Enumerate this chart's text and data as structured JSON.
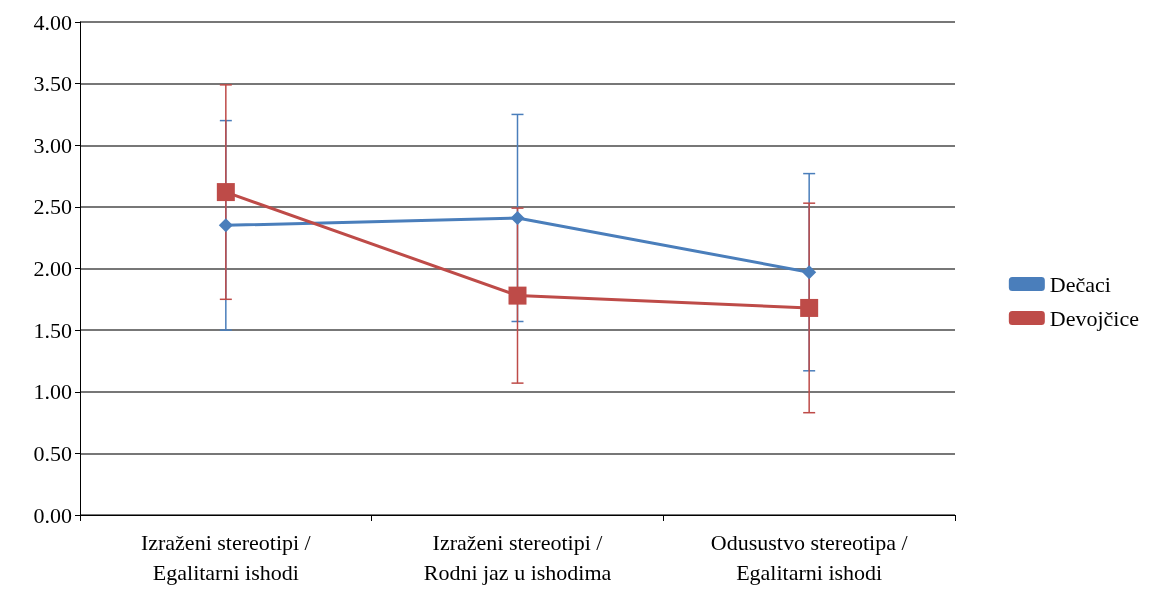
{
  "chart_data": {
    "type": "line",
    "categories": [
      "Izraženi stereotipi /\nEgalitarni ishodi",
      "Izraženi stereotipi /\nRodni jaz u ishodima",
      "Odusustvo stereotipa /\nEgalitarni ishodi"
    ],
    "series": [
      {
        "name": "Dečaci",
        "color": "#4a7ebb",
        "marker": "diamond",
        "values": [
          2.35,
          2.41,
          1.97
        ],
        "errors": [
          [
            1.5,
            3.2
          ],
          [
            1.57,
            3.25
          ],
          [
            1.17,
            2.77
          ]
        ]
      },
      {
        "name": "Devojčice",
        "color": "#be4b48",
        "marker": "square",
        "values": [
          2.62,
          1.78,
          1.68
        ],
        "errors": [
          [
            1.75,
            3.49
          ],
          [
            1.07,
            2.49
          ],
          [
            0.83,
            2.53
          ]
        ]
      }
    ],
    "ylim": [
      0,
      4
    ],
    "yticks": [
      {
        "value": 0,
        "label": "0.00"
      },
      {
        "value": 0.5,
        "label": "0.50"
      },
      {
        "value": 1,
        "label": "1.00"
      },
      {
        "value": 1.5,
        "label": "1.50"
      },
      {
        "value": 2,
        "label": "2.00"
      },
      {
        "value": 2.5,
        "label": "2.50"
      },
      {
        "value": 3,
        "label": "3.00"
      },
      {
        "value": 3.5,
        "label": "3.50"
      },
      {
        "value": 4,
        "label": "4.00"
      }
    ],
    "grid": "y",
    "legend": "right",
    "line_style": "solid"
  }
}
